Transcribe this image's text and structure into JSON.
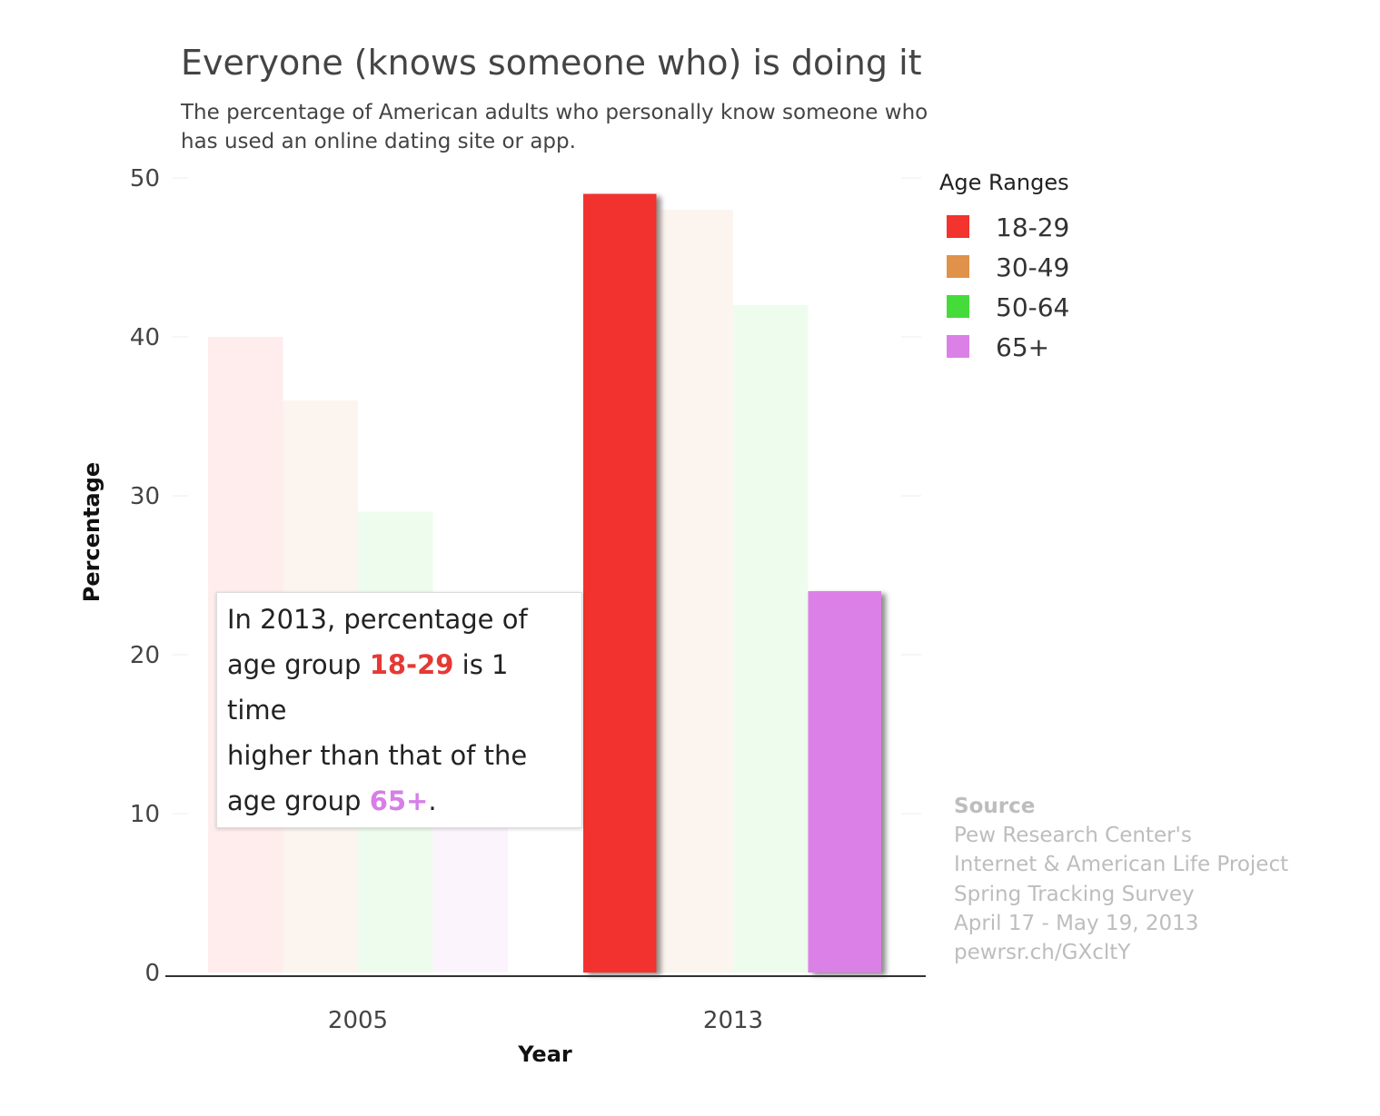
{
  "chart_data": {
    "type": "bar",
    "title": "Everyone (knows someone who) is doing it",
    "subtitle": [
      "The percentage of American adults who personally know someone who",
      "has used an online dating site or app."
    ],
    "xlabel": "Year",
    "ylabel": "Percentage",
    "categories": [
      "2005",
      "2013"
    ],
    "ylim": [
      0,
      50
    ],
    "yticks": [
      "0",
      "10",
      "20",
      "30",
      "40",
      "50"
    ],
    "series": [
      {
        "name": "18-29",
        "color": "#f2332e",
        "values": [
          40,
          49
        ]
      },
      {
        "name": "30-49",
        "color": "#e0914a",
        "values": [
          36,
          48
        ]
      },
      {
        "name": "50-64",
        "color": "#45db3a",
        "values": [
          29,
          42
        ]
      },
      {
        "name": "65+",
        "color": "#db80e6",
        "values": [
          13,
          24
        ]
      }
    ],
    "highlighted": {
      "category": "2013",
      "series": [
        "18-29",
        "65+"
      ]
    },
    "legend": {
      "title": "Age Ranges",
      "position": "top-right"
    },
    "grid": true
  },
  "annotation": {
    "line1": "In 2013, percentage of",
    "line2_prefix": "age group ",
    "line2_highlight": "18-29",
    "line2_suffix": " is 1 time",
    "line3": "higher than that of the",
    "line4_prefix": "age group ",
    "line4_highlight": "65+",
    "line4_suffix": "."
  },
  "source": {
    "heading": "Source",
    "lines": [
      "Pew Research Center's",
      "Internet & American Life Project",
      "Spring Tracking Survey",
      "April 17 - May 19, 2013",
      "pewrsr.ch/GXcltY"
    ]
  }
}
